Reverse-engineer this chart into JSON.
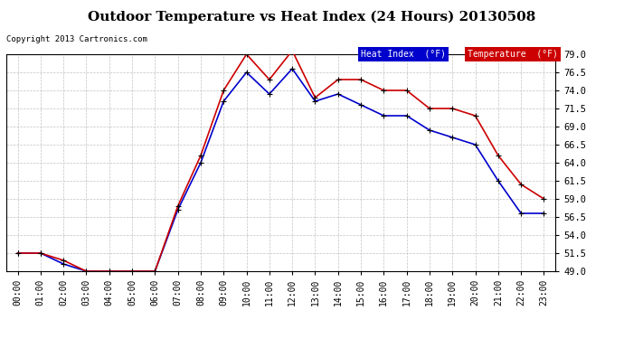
{
  "title": "Outdoor Temperature vs Heat Index (24 Hours) 20130508",
  "copyright": "Copyright 2013 Cartronics.com",
  "hours": [
    "00:00",
    "01:00",
    "02:00",
    "03:00",
    "04:00",
    "05:00",
    "06:00",
    "07:00",
    "08:00",
    "09:00",
    "10:00",
    "11:00",
    "12:00",
    "13:00",
    "14:00",
    "15:00",
    "16:00",
    "17:00",
    "18:00",
    "19:00",
    "20:00",
    "21:00",
    "22:00",
    "23:00"
  ],
  "temperature": [
    51.5,
    51.5,
    50.5,
    49.0,
    49.0,
    49.0,
    49.0,
    58.0,
    65.0,
    74.0,
    79.0,
    75.5,
    79.5,
    73.0,
    75.5,
    75.5,
    74.0,
    74.0,
    71.5,
    71.5,
    70.5,
    65.0,
    61.0,
    59.0
  ],
  "heat_index": [
    51.5,
    51.5,
    50.0,
    49.0,
    49.0,
    49.0,
    49.0,
    57.5,
    64.0,
    72.5,
    76.5,
    73.5,
    77.0,
    72.5,
    73.5,
    72.0,
    70.5,
    70.5,
    68.5,
    67.5,
    66.5,
    61.5,
    57.0,
    57.0
  ],
  "ylim_min": 49.0,
  "ylim_max": 79.0,
  "yticks": [
    49.0,
    51.5,
    54.0,
    56.5,
    59.0,
    61.5,
    64.0,
    66.5,
    69.0,
    71.5,
    74.0,
    76.5,
    79.0
  ],
  "temp_color": "#cc0000",
  "heat_color": "#0000cc",
  "bg_color": "#ffffff",
  "grid_color": "#bbbbbb",
  "title_fontsize": 11,
  "copyright_fontsize": 6.5,
  "tick_fontsize": 7,
  "ytick_fontsize": 7.5,
  "legend_heat_label": "Heat Index  (°F)",
  "legend_temp_label": "Temperature  (°F)",
  "legend_heat_bg": "#0000cc",
  "legend_temp_bg": "#cc0000",
  "legend_text_color": "#ffffff"
}
